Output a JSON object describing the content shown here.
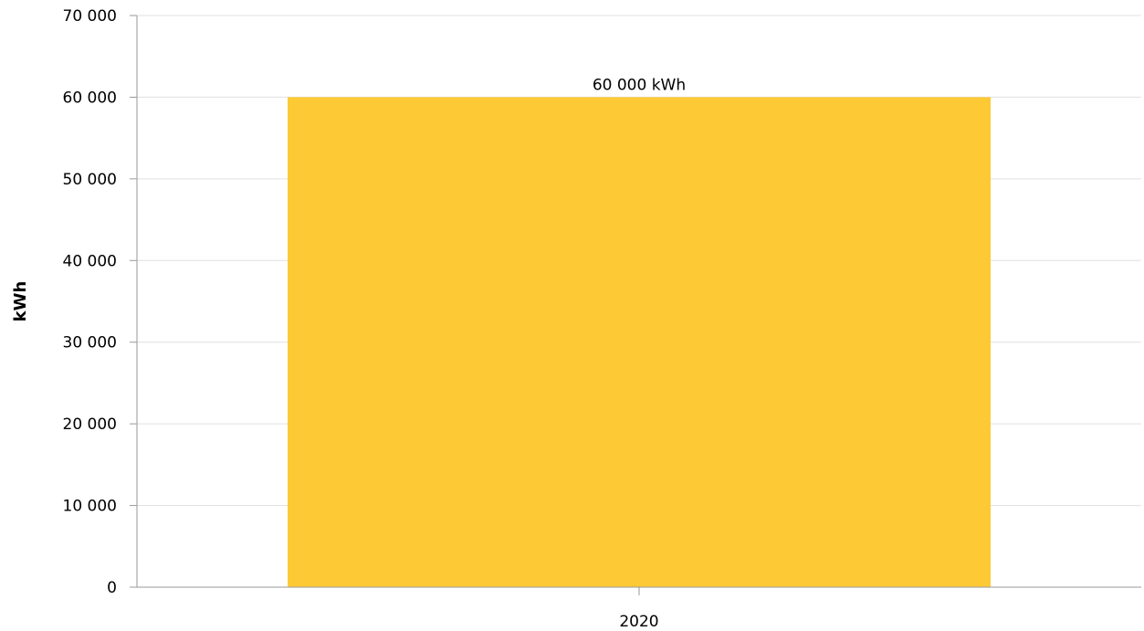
{
  "chart_data": {
    "type": "bar",
    "categories": [
      "2020"
    ],
    "values": [
      60000
    ],
    "data_labels": [
      "60 000 kWh"
    ],
    "ylabel": "kWh",
    "xlabel": "",
    "ylim": [
      0,
      70000
    ],
    "y_ticks": [
      0,
      10000,
      20000,
      30000,
      40000,
      50000,
      60000,
      70000
    ],
    "y_tick_labels": [
      "0",
      "10 000",
      "20 000",
      "30 000",
      "40 000",
      "50 000",
      "60 000",
      "70 000"
    ],
    "grid": true,
    "legend": "none",
    "colors": {
      "bar": "#fdca35",
      "grid": "#e0e0e0",
      "axis": "#999999"
    }
  }
}
